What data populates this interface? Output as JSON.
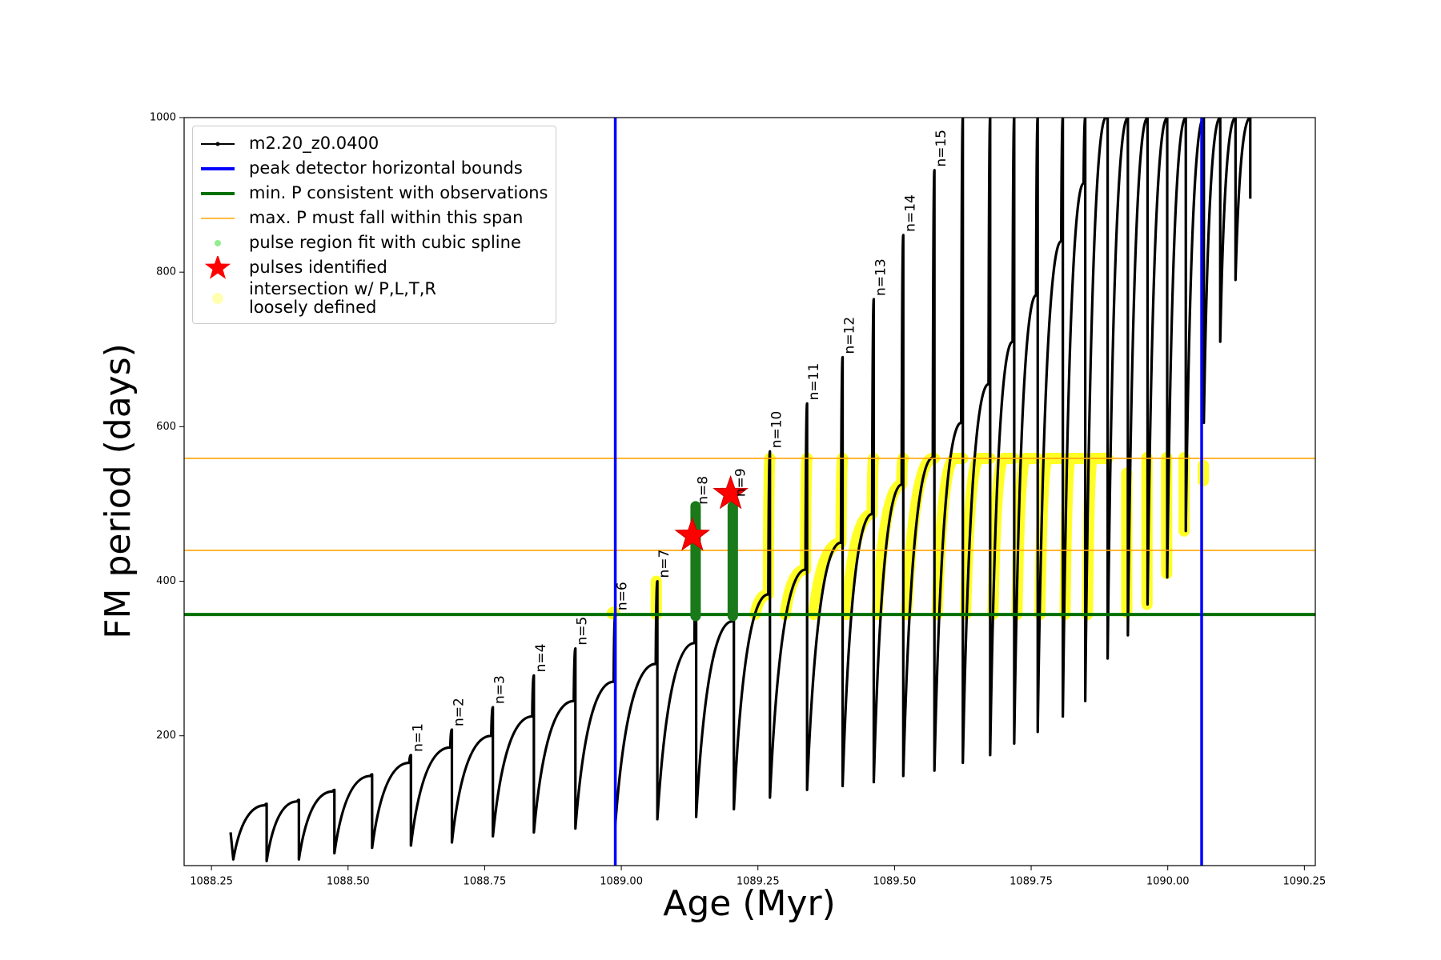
{
  "chart_data": {
    "type": "line",
    "xlabel": "Age (Myr)",
    "ylabel": "FM period (days)",
    "xlim": [
      1088.2,
      1090.27
    ],
    "ylim": [
      32,
      1000
    ],
    "xticks": [
      {
        "value": 1088.25,
        "label": "1088.25"
      },
      {
        "value": 1088.5,
        "label": "1088.50"
      },
      {
        "value": 1088.75,
        "label": "1088.75"
      },
      {
        "value": 1089,
        "label": "1089.00"
      },
      {
        "value": 1089.25,
        "label": "1089.25"
      },
      {
        "value": 1089.5,
        "label": "1089.50"
      },
      {
        "value": 1089.75,
        "label": "1089.75"
      },
      {
        "value": 1090,
        "label": "1090.00"
      },
      {
        "value": 1090.25,
        "label": "1090.25"
      }
    ],
    "yticks": [
      200,
      400,
      600,
      800,
      1000
    ],
    "legend": "upper left",
    "series": [
      {
        "name": "m2.20_z0.0400",
        "color": "#000000",
        "kind": "line",
        "x": [
          1088.285,
          1088.29,
          1088.348,
          1088.351,
          1088.351,
          1088.407,
          1088.41,
          1088.41,
          1088.472,
          1088.475,
          1088.475,
          1088.541,
          1088.544,
          1088.544,
          1088.612,
          1088.615,
          1088.615,
          1088.687,
          1088.69,
          1088.69,
          1088.762,
          1088.765,
          1088.765,
          1088.837,
          1088.84,
          1088.84,
          1088.913,
          1088.916,
          1088.916,
          1088.986,
          1088.989,
          1088.989,
          1089.063,
          1089.066,
          1089.066,
          1089.134,
          1089.137,
          1089.137,
          1089.203,
          1089.206,
          1089.206,
          1089.269,
          1089.272,
          1089.272,
          1089.337,
          1089.34,
          1089.34,
          1089.402,
          1089.405,
          1089.405,
          1089.459,
          1089.462,
          1089.462,
          1089.513,
          1089.516,
          1089.516,
          1089.57,
          1089.573,
          1089.573,
          1089.622,
          1089.625,
          1089.625,
          1089.672,
          1089.675,
          1089.675,
          1089.716,
          1089.719,
          1089.719,
          1089.759,
          1089.762,
          1089.762,
          1089.805,
          1089.808,
          1089.808,
          1089.846,
          1089.849,
          1089.849,
          1089.887,
          1089.89,
          1089.89,
          1089.927,
          1089.927,
          1089.963,
          1089.963,
          1089.999,
          1089.999,
          1090.033,
          1090.033,
          1090.066,
          1090.066,
          1090.096,
          1090.096,
          1090.124,
          1090.124,
          1090.151,
          1090.151
        ],
        "values": [
          75,
          40,
          110,
          112,
          38,
          115,
          117,
          40,
          128,
          130,
          48,
          148,
          150,
          55,
          165,
          175,
          58,
          185,
          208,
          62,
          200,
          237,
          70,
          225,
          278,
          75,
          245,
          313,
          80,
          270,
          358,
          85,
          293,
          400,
          92,
          320,
          495,
          95,
          348,
          505,
          105,
          383,
          568,
          120,
          415,
          630,
          130,
          450,
          690,
          135,
          487,
          765,
          140,
          525,
          848,
          148,
          560,
          932,
          155,
          605,
          1000,
          165,
          655,
          1000,
          175,
          710,
          1000,
          190,
          770,
          1000,
          205,
          840,
          1000,
          225,
          915,
          1000,
          245,
          1000,
          1000,
          300,
          1000,
          330,
          1000,
          370,
          1000,
          405,
          1000,
          465,
          1000,
          605,
          1000,
          710,
          1000,
          790,
          1000,
          895
        ]
      },
      {
        "name": "peak detector horizontal bounds",
        "color": "#0000ff",
        "kind": "vline",
        "x": [
          1088.989,
          1090.062
        ]
      },
      {
        "name": "min. P consistent with observations",
        "color": "#007000",
        "kind": "hline",
        "values": [
          357
        ]
      },
      {
        "name": "max. P must fall within this span",
        "color": "#ffa500",
        "kind": "hline",
        "values": [
          440,
          559
        ]
      },
      {
        "name": "pulse region fit with cubic spline",
        "color": "#90ee90",
        "edge_color": "#1a7a1a",
        "kind": "band",
        "x": [
          1089.136,
          1089.136,
          null,
          1089.204,
          1089.204
        ],
        "values": [
          355,
          497,
          null,
          355,
          497
        ]
      },
      {
        "name": "pulses identified",
        "color": "#ff0000",
        "kind": "star",
        "x": [
          1089.13,
          1089.2
        ],
        "values": [
          459,
          513
        ]
      },
      {
        "name": "intersection w/ P,L,T,R\nloosely defined",
        "color": "#ffff00",
        "kind": "highlight",
        "x": [
          1088.983,
          1088.987,
          null,
          1089.064,
          1089.064,
          null,
          1089.245,
          1089.269,
          1089.272,
          null,
          1089.3,
          1089.337,
          1089.34,
          null,
          1089.352,
          1089.402,
          1089.405,
          null,
          1089.412,
          1089.459,
          1089.462,
          null,
          1089.468,
          1089.513,
          1089.516,
          null,
          1089.522,
          1089.57,
          1089.573,
          null,
          1089.578,
          1089.61,
          1089.625,
          null,
          1089.63,
          1089.655,
          1089.675,
          null,
          1089.68,
          1089.7,
          1089.719,
          null,
          1089.724,
          1089.74,
          1089.762,
          null,
          1089.766,
          1089.78,
          1089.808,
          null,
          1089.812,
          1089.822,
          1089.849,
          null,
          1089.853,
          1089.862,
          1089.89,
          null,
          1089.925,
          1089.925,
          null,
          1089.962,
          1089.962,
          null,
          1089.998,
          1089.998,
          null,
          1090.03,
          1090.03,
          null,
          1090.065,
          1090.065
        ],
        "values": [
          358,
          360,
          null,
          357,
          400,
          null,
          357,
          383,
          559,
          null,
          357,
          415,
          559,
          null,
          357,
          450,
          559,
          null,
          357,
          487,
          559,
          null,
          357,
          525,
          559,
          null,
          357,
          559,
          559,
          null,
          357,
          559,
          559,
          null,
          357,
          559,
          559,
          null,
          357,
          559,
          559,
          null,
          357,
          559,
          559,
          null,
          357,
          559,
          559,
          null,
          357,
          559,
          559,
          null,
          357,
          559,
          559,
          null,
          360,
          540,
          null,
          370,
          560,
          null,
          410,
          560,
          null,
          465,
          560,
          null,
          530,
          550
        ]
      }
    ],
    "annotations": [
      {
        "text": "n=1",
        "x": 1088.615,
        "y": 175
      },
      {
        "text": "n=2",
        "x": 1088.69,
        "y": 208
      },
      {
        "text": "n=3",
        "x": 1088.765,
        "y": 237
      },
      {
        "text": "n=4",
        "x": 1088.84,
        "y": 278
      },
      {
        "text": "n=5",
        "x": 1088.916,
        "y": 313
      },
      {
        "text": "n=6",
        "x": 1088.989,
        "y": 358
      },
      {
        "text": "n=7",
        "x": 1089.066,
        "y": 400
      },
      {
        "text": "n=8",
        "x": 1089.137,
        "y": 495
      },
      {
        "text": "n=9",
        "x": 1089.206,
        "y": 505
      },
      {
        "text": "n=10",
        "x": 1089.272,
        "y": 568
      },
      {
        "text": "n=11",
        "x": 1089.34,
        "y": 630
      },
      {
        "text": "n=12",
        "x": 1089.405,
        "y": 690
      },
      {
        "text": "n=13",
        "x": 1089.462,
        "y": 765
      },
      {
        "text": "n=14",
        "x": 1089.516,
        "y": 848
      },
      {
        "text": "n=15",
        "x": 1089.573,
        "y": 932
      }
    ]
  }
}
